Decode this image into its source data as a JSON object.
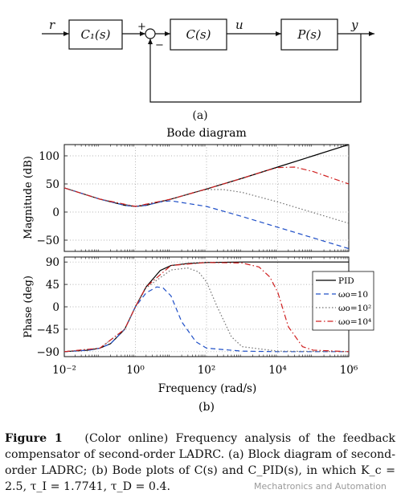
{
  "block_diagram": {
    "signal_r": "r",
    "signal_u": "u",
    "signal_y": "y",
    "block_c1": "C₁(s)",
    "block_c": "C(s)",
    "block_p": "P(s)",
    "plus_sign": "+",
    "minus_sign": "−",
    "panel_label": "(a)"
  },
  "bode": {
    "title": "Bode diagram",
    "panel_label": "(b)",
    "legend": [
      {
        "label": "PID",
        "color": "#000000",
        "style": "solid"
      },
      {
        "label": "ωo=10",
        "color": "#2050c8",
        "style": "dashed"
      },
      {
        "label": "ωo=10²",
        "color": "#707070",
        "style": "dotted"
      },
      {
        "label": "ωo=10⁴",
        "color": "#d02020",
        "style": "dashdot"
      }
    ]
  },
  "chart_data": [
    {
      "type": "line",
      "title": "Bode diagram",
      "xlabel": "",
      "ylabel": "Magnitude (dB)",
      "xscale": "log",
      "xlim": [
        0.01,
        1000000
      ],
      "ylim": [
        -70,
        120
      ],
      "yticks": [
        -50,
        0,
        50,
        100
      ],
      "grid": true,
      "series": [
        {
          "name": "PID",
          "x": [
            0.01,
            0.1,
            0.5,
            1,
            2,
            10,
            100,
            1000,
            10000,
            100000,
            1000000
          ],
          "y": [
            43,
            23,
            12,
            10,
            12,
            23,
            41,
            60,
            80,
            100,
            120
          ]
        },
        {
          "name": "ωo=10",
          "x": [
            0.01,
            0.1,
            0.5,
            1,
            2,
            5,
            10,
            100,
            1000,
            10000,
            100000,
            1000000
          ],
          "y": [
            43,
            23,
            12,
            10,
            12,
            18,
            20,
            10,
            -8,
            -27,
            -46,
            -65
          ]
        },
        {
          "name": "ωo=10²",
          "x": [
            0.01,
            0.1,
            1,
            10,
            50,
            100,
            300,
            1000,
            10000,
            100000,
            1000000
          ],
          "y": [
            43,
            23,
            10,
            23,
            36,
            40,
            40,
            35,
            18,
            -1,
            -20
          ]
        },
        {
          "name": "ωo=10⁴",
          "x": [
            0.01,
            0.1,
            1,
            10,
            100,
            1000,
            5000,
            10000,
            30000,
            100000,
            1000000
          ],
          "y": [
            43,
            23,
            10,
            23,
            41,
            60,
            74,
            79,
            80,
            72,
            50
          ]
        }
      ]
    },
    {
      "type": "line",
      "xlabel": "Frequency  (rad/s)",
      "ylabel": "Phase (deg)",
      "xscale": "log",
      "xlim": [
        0.01,
        1000000
      ],
      "ylim": [
        -100,
        100
      ],
      "xticks": [
        "10⁻²",
        "10⁰",
        "10²",
        "10⁴",
        "10⁶"
      ],
      "yticks": [
        -90,
        -45,
        0,
        45,
        90
      ],
      "grid": true,
      "legend_position": "right",
      "series": [
        {
          "name": "PID",
          "x": [
            0.01,
            0.05,
            0.1,
            0.2,
            0.5,
            1,
            2,
            5,
            10,
            30,
            100,
            1000,
            1000000
          ],
          "y": [
            -90,
            -87,
            -83,
            -74,
            -45,
            0,
            40,
            73,
            83,
            87,
            89,
            90,
            90
          ]
        },
        {
          "name": "ωo=10",
          "x": [
            0.01,
            0.05,
            0.1,
            0.2,
            0.5,
            1,
            2,
            4,
            6,
            10,
            20,
            50,
            100,
            1000,
            10000,
            1000000
          ],
          "y": [
            -90,
            -87,
            -83,
            -74,
            -45,
            0,
            28,
            40,
            38,
            22,
            -30,
            -70,
            -83,
            -89,
            -90,
            -90
          ]
        },
        {
          "name": "ωo=10²",
          "x": [
            0.01,
            0.1,
            0.5,
            1,
            2,
            10,
            30,
            60,
            100,
            200,
            500,
            1000,
            10000,
            1000000
          ],
          "y": [
            -90,
            -83,
            -45,
            0,
            38,
            74,
            78,
            70,
            50,
            0,
            -60,
            -80,
            -89,
            -90
          ]
        },
        {
          "name": "ωo=10⁴",
          "x": [
            0.01,
            0.1,
            0.5,
            1,
            2,
            10,
            100,
            1000,
            3000,
            6000,
            10000,
            20000,
            50000,
            100000,
            1000000
          ],
          "y": [
            -90,
            -83,
            -45,
            0,
            40,
            83,
            89,
            88,
            80,
            60,
            30,
            -40,
            -80,
            -87,
            -90
          ]
        }
      ]
    }
  ],
  "caption": {
    "label": "Figure 1",
    "text": "(Color online) Frequency analysis of the feedback compensator of second-order LADRC. (a) Block diagram of second-order LADRC; (b) Bode plots of C(s) and C_PID(s), in which K_c = 2.5, τ_I = 1.7741, τ_D = 0.4."
  },
  "watermark": "Mechatronics and Automation"
}
